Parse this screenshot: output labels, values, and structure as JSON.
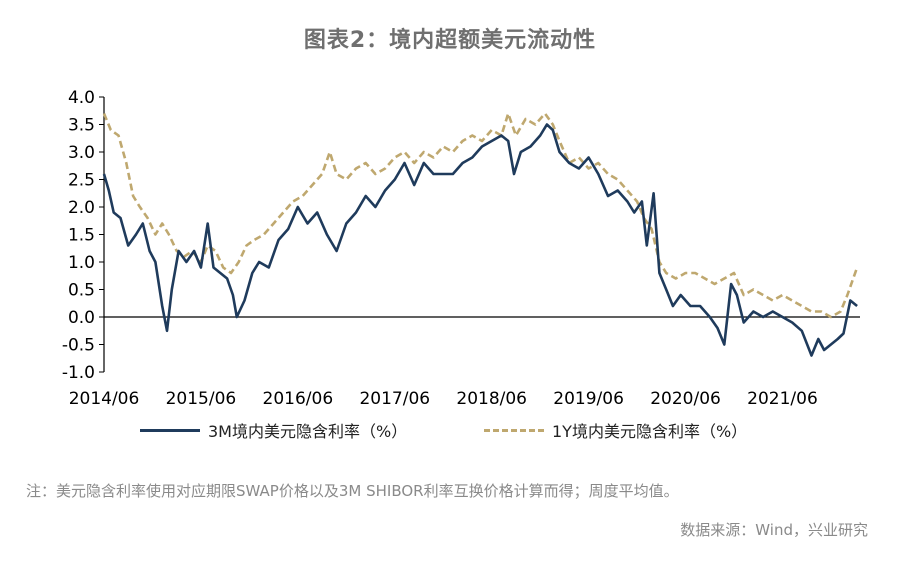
{
  "title": "图表2：境内超额美元流动性",
  "note": "注：美元隐含利率使用对应期限SWAP价格以及3M SHIBOR利率互换价格计算而得；周度平均值。",
  "source": "数据来源：Wind，兴业研究",
  "colors": {
    "series_3m": "#1f3b5c",
    "series_1y": "#bfa86f",
    "axis": "#000000"
  },
  "chart_data": {
    "type": "line",
    "ylim": [
      -1.0,
      4.0
    ],
    "y_ticks": [
      "4.0",
      "3.5",
      "3.0",
      "2.5",
      "2.0",
      "1.5",
      "1.0",
      "0.5",
      "0.0",
      "-0.5",
      "-1.0"
    ],
    "x_tick_labels": [
      "2014/06",
      "2015/06",
      "2016/06",
      "2017/06",
      "2018/06",
      "2019/06",
      "2020/06",
      "2021/06"
    ],
    "grid": false,
    "legend_position": "bottom",
    "series": [
      {
        "name": "3M境内美元隐含利率（%）",
        "style": "solid",
        "values": [
          [
            2014.45,
            2.6
          ],
          [
            2014.5,
            2.3
          ],
          [
            2014.55,
            1.9
          ],
          [
            2014.62,
            1.8
          ],
          [
            2014.7,
            1.3
          ],
          [
            2014.78,
            1.5
          ],
          [
            2014.85,
            1.7
          ],
          [
            2014.92,
            1.2
          ],
          [
            2014.98,
            1.0
          ],
          [
            2015.05,
            0.2
          ],
          [
            2015.1,
            -0.25
          ],
          [
            2015.15,
            0.5
          ],
          [
            2015.22,
            1.2
          ],
          [
            2015.3,
            1.0
          ],
          [
            2015.38,
            1.2
          ],
          [
            2015.45,
            0.9
          ],
          [
            2015.52,
            1.7
          ],
          [
            2015.58,
            0.9
          ],
          [
            2015.65,
            0.8
          ],
          [
            2015.72,
            0.7
          ],
          [
            2015.78,
            0.4
          ],
          [
            2015.82,
            0.0
          ],
          [
            2015.9,
            0.3
          ],
          [
            2015.98,
            0.8
          ],
          [
            2016.05,
            1.0
          ],
          [
            2016.15,
            0.9
          ],
          [
            2016.25,
            1.4
          ],
          [
            2016.35,
            1.6
          ],
          [
            2016.45,
            2.0
          ],
          [
            2016.55,
            1.7
          ],
          [
            2016.65,
            1.9
          ],
          [
            2016.75,
            1.5
          ],
          [
            2016.85,
            1.2
          ],
          [
            2016.95,
            1.7
          ],
          [
            2017.05,
            1.9
          ],
          [
            2017.15,
            2.2
          ],
          [
            2017.25,
            2.0
          ],
          [
            2017.35,
            2.3
          ],
          [
            2017.45,
            2.5
          ],
          [
            2017.55,
            2.8
          ],
          [
            2017.65,
            2.4
          ],
          [
            2017.75,
            2.8
          ],
          [
            2017.85,
            2.6
          ],
          [
            2017.95,
            2.6
          ],
          [
            2018.05,
            2.6
          ],
          [
            2018.15,
            2.8
          ],
          [
            2018.25,
            2.9
          ],
          [
            2018.35,
            3.1
          ],
          [
            2018.45,
            3.2
          ],
          [
            2018.55,
            3.3
          ],
          [
            2018.62,
            3.2
          ],
          [
            2018.68,
            2.6
          ],
          [
            2018.75,
            3.0
          ],
          [
            2018.85,
            3.1
          ],
          [
            2018.95,
            3.3
          ],
          [
            2019.02,
            3.5
          ],
          [
            2019.08,
            3.4
          ],
          [
            2019.15,
            3.0
          ],
          [
            2019.25,
            2.8
          ],
          [
            2019.35,
            2.7
          ],
          [
            2019.45,
            2.9
          ],
          [
            2019.55,
            2.6
          ],
          [
            2019.65,
            2.2
          ],
          [
            2019.75,
            2.3
          ],
          [
            2019.85,
            2.1
          ],
          [
            2019.92,
            1.9
          ],
          [
            2020.0,
            2.1
          ],
          [
            2020.05,
            1.3
          ],
          [
            2020.12,
            2.25
          ],
          [
            2020.18,
            0.8
          ],
          [
            2020.25,
            0.5
          ],
          [
            2020.32,
            0.2
          ],
          [
            2020.4,
            0.4
          ],
          [
            2020.5,
            0.2
          ],
          [
            2020.6,
            0.2
          ],
          [
            2020.7,
            0.0
          ],
          [
            2020.78,
            -0.2
          ],
          [
            2020.85,
            -0.5
          ],
          [
            2020.92,
            0.6
          ],
          [
            2020.98,
            0.4
          ],
          [
            2021.05,
            -0.1
          ],
          [
            2021.15,
            0.1
          ],
          [
            2021.25,
            0.0
          ],
          [
            2021.35,
            0.1
          ],
          [
            2021.45,
            0.0
          ],
          [
            2021.55,
            -0.1
          ],
          [
            2021.65,
            -0.25
          ],
          [
            2021.75,
            -0.7
          ],
          [
            2021.82,
            -0.4
          ],
          [
            2021.88,
            -0.6
          ],
          [
            2021.95,
            -0.5
          ],
          [
            2022.02,
            -0.4
          ],
          [
            2022.08,
            -0.3
          ],
          [
            2022.15,
            0.3
          ],
          [
            2022.22,
            0.2
          ]
        ]
      },
      {
        "name": "1Y境内美元隐含利率（%）",
        "style": "dashed",
        "values": [
          [
            2014.45,
            3.7
          ],
          [
            2014.52,
            3.4
          ],
          [
            2014.6,
            3.3
          ],
          [
            2014.68,
            2.8
          ],
          [
            2014.75,
            2.2
          ],
          [
            2014.82,
            2.0
          ],
          [
            2014.9,
            1.8
          ],
          [
            2014.98,
            1.5
          ],
          [
            2015.05,
            1.7
          ],
          [
            2015.12,
            1.5
          ],
          [
            2015.2,
            1.2
          ],
          [
            2015.28,
            1.1
          ],
          [
            2015.36,
            1.2
          ],
          [
            2015.45,
            1.0
          ],
          [
            2015.52,
            1.3
          ],
          [
            2015.6,
            1.2
          ],
          [
            2015.68,
            0.9
          ],
          [
            2015.76,
            0.8
          ],
          [
            2015.84,
            1.0
          ],
          [
            2015.92,
            1.3
          ],
          [
            2016.0,
            1.4
          ],
          [
            2016.1,
            1.5
          ],
          [
            2016.2,
            1.7
          ],
          [
            2016.3,
            1.9
          ],
          [
            2016.4,
            2.1
          ],
          [
            2016.5,
            2.2
          ],
          [
            2016.6,
            2.4
          ],
          [
            2016.7,
            2.6
          ],
          [
            2016.78,
            3.0
          ],
          [
            2016.85,
            2.6
          ],
          [
            2016.95,
            2.5
          ],
          [
            2017.05,
            2.7
          ],
          [
            2017.15,
            2.8
          ],
          [
            2017.25,
            2.6
          ],
          [
            2017.35,
            2.7
          ],
          [
            2017.45,
            2.9
          ],
          [
            2017.55,
            3.0
          ],
          [
            2017.65,
            2.8
          ],
          [
            2017.75,
            3.0
          ],
          [
            2017.85,
            2.9
          ],
          [
            2017.95,
            3.1
          ],
          [
            2018.05,
            3.0
          ],
          [
            2018.15,
            3.2
          ],
          [
            2018.25,
            3.3
          ],
          [
            2018.35,
            3.2
          ],
          [
            2018.45,
            3.4
          ],
          [
            2018.55,
            3.3
          ],
          [
            2018.62,
            3.7
          ],
          [
            2018.7,
            3.3
          ],
          [
            2018.8,
            3.6
          ],
          [
            2018.9,
            3.5
          ],
          [
            2019.0,
            3.7
          ],
          [
            2019.08,
            3.5
          ],
          [
            2019.15,
            3.2
          ],
          [
            2019.25,
            2.8
          ],
          [
            2019.35,
            2.9
          ],
          [
            2019.45,
            2.7
          ],
          [
            2019.55,
            2.8
          ],
          [
            2019.65,
            2.6
          ],
          [
            2019.75,
            2.5
          ],
          [
            2019.85,
            2.3
          ],
          [
            2019.95,
            2.1
          ],
          [
            2020.02,
            1.8
          ],
          [
            2020.1,
            1.6
          ],
          [
            2020.18,
            1.0
          ],
          [
            2020.25,
            0.8
          ],
          [
            2020.35,
            0.7
          ],
          [
            2020.45,
            0.8
          ],
          [
            2020.55,
            0.8
          ],
          [
            2020.65,
            0.7
          ],
          [
            2020.75,
            0.6
          ],
          [
            2020.85,
            0.7
          ],
          [
            2020.95,
            0.8
          ],
          [
            2021.05,
            0.4
          ],
          [
            2021.15,
            0.5
          ],
          [
            2021.25,
            0.4
          ],
          [
            2021.35,
            0.3
          ],
          [
            2021.45,
            0.4
          ],
          [
            2021.55,
            0.3
          ],
          [
            2021.65,
            0.2
          ],
          [
            2021.75,
            0.1
          ],
          [
            2021.85,
            0.1
          ],
          [
            2021.95,
            0.0
          ],
          [
            2022.05,
            0.1
          ],
          [
            2022.12,
            0.4
          ],
          [
            2022.18,
            0.7
          ],
          [
            2022.22,
            0.9
          ]
        ]
      }
    ]
  }
}
